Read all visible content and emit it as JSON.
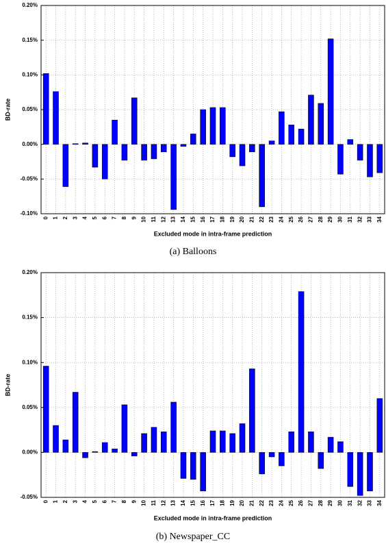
{
  "chart_data": [
    {
      "type": "bar",
      "y_label": "BD-rate",
      "x_label": "Excluded mode in intra-frame prediction",
      "caption": "(a) Balloons",
      "categories": [
        "0",
        "1",
        "2",
        "3",
        "4",
        "5",
        "6",
        "7",
        "8",
        "9",
        "10",
        "11",
        "12",
        "13",
        "14",
        "15",
        "16",
        "17",
        "18",
        "19",
        "20",
        "21",
        "22",
        "23",
        "24",
        "25",
        "26",
        "27",
        "28",
        "29",
        "30",
        "31",
        "32",
        "33",
        "34"
      ],
      "values": [
        0.102,
        0.076,
        -0.061,
        0.001,
        0.002,
        -0.033,
        -0.05,
        0.035,
        -0.023,
        0.067,
        -0.023,
        -0.021,
        -0.011,
        -0.094,
        -0.003,
        0.015,
        0.05,
        0.053,
        0.053,
        -0.018,
        -0.031,
        -0.011,
        -0.09,
        0.005,
        0.047,
        0.028,
        0.022,
        0.071,
        0.059,
        0.152,
        -0.043,
        0.007,
        -0.023,
        -0.047,
        -0.041
      ],
      "color": "#0000ff",
      "ylim": [
        -0.1,
        0.2
      ],
      "yticks": [
        {
          "value": -0.1,
          "label": "-0.10%"
        },
        {
          "value": -0.05,
          "label": "-0.05%"
        },
        {
          "value": 0,
          "label": "0.00%"
        },
        {
          "value": 0.05,
          "label": "0.05%"
        },
        {
          "value": 0.1,
          "label": "0.10%"
        },
        {
          "value": 0.15,
          "label": "0.15%"
        },
        {
          "value": 0.2,
          "label": "0.20%"
        }
      ],
      "grid": true
    },
    {
      "type": "bar",
      "y_label": "BD-rate",
      "x_label": "Excluded mode in intra-frame prediction",
      "caption": "(b) Newspaper_CC",
      "categories": [
        "0",
        "1",
        "2",
        "3",
        "4",
        "5",
        "6",
        "7",
        "8",
        "9",
        "10",
        "11",
        "12",
        "13",
        "14",
        "15",
        "16",
        "17",
        "18",
        "19",
        "20",
        "21",
        "22",
        "23",
        "24",
        "25",
        "26",
        "27",
        "28",
        "29",
        "30",
        "31",
        "32",
        "33",
        "34"
      ],
      "values": [
        0.096,
        0.03,
        0.014,
        0.067,
        -0.006,
        0.001,
        0.011,
        0.004,
        0.053,
        -0.004,
        0.021,
        0.028,
        0.023,
        0.056,
        -0.029,
        -0.03,
        -0.043,
        0.024,
        0.024,
        0.021,
        0.032,
        0.093,
        -0.024,
        -0.005,
        -0.015,
        0.023,
        0.179,
        0.023,
        -0.018,
        0.017,
        0.012,
        -0.038,
        -0.048,
        -0.043,
        0.06
      ],
      "color": "#0000ff",
      "ylim": [
        -0.05,
        0.2
      ],
      "yticks": [
        {
          "value": -0.05,
          "label": "-0.05%"
        },
        {
          "value": 0,
          "label": "0.00%"
        },
        {
          "value": 0.05,
          "label": "0.05%"
        },
        {
          "value": 0.1,
          "label": "0.10%"
        },
        {
          "value": 0.15,
          "label": "0.15%"
        },
        {
          "value": 0.2,
          "label": "0.20%"
        }
      ],
      "grid": true
    }
  ]
}
